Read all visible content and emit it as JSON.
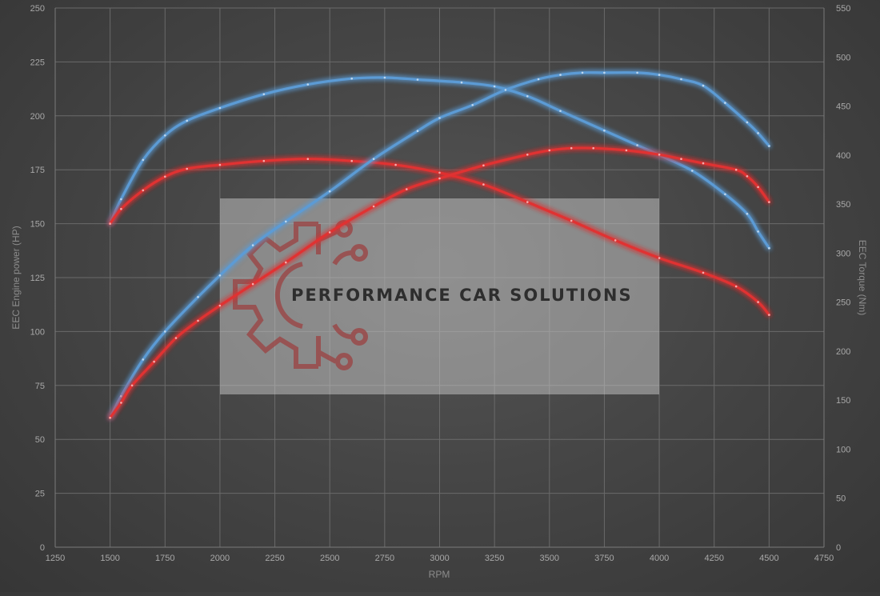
{
  "chart_data": {
    "type": "line",
    "xlabel": "RPM",
    "ylabel_left": "EEC Engine power (HP)",
    "ylabel_right": "EEC Torque (Nm)",
    "xlim": [
      1250,
      4750
    ],
    "ylim_left": [
      0,
      250
    ],
    "ylim_right": [
      0,
      550
    ],
    "x_ticks": [
      1250,
      1500,
      1750,
      2000,
      2250,
      2500,
      2750,
      3000,
      3250,
      3500,
      3750,
      4000,
      4250,
      4500,
      4750
    ],
    "y_left_ticks": [
      0,
      25,
      50,
      75,
      100,
      125,
      150,
      175,
      200,
      225,
      250
    ],
    "y_right_ticks": [
      0,
      50,
      100,
      150,
      200,
      250,
      300,
      350,
      400,
      450,
      500,
      550
    ],
    "grid": true,
    "series": [
      {
        "axis": "right",
        "color": "#5b9bd5",
        "x": [
          1500,
          1550,
          1650,
          1750,
          1850,
          2000,
          2200,
          2400,
          2600,
          2750,
          2900,
          3100,
          3250,
          3400,
          3550,
          3750,
          3900,
          4000,
          4150,
          4300,
          4400,
          4450,
          4500
        ],
        "values": [
          330,
          355,
          395,
          420,
          435,
          448,
          462,
          472,
          478,
          479,
          477,
          474,
          470,
          460,
          445,
          425,
          410,
          400,
          384,
          360,
          340,
          322,
          305
        ]
      },
      {
        "axis": "right",
        "color": "#e03030",
        "x": [
          1500,
          1550,
          1650,
          1750,
          1850,
          2000,
          2200,
          2400,
          2600,
          2800,
          3000,
          3200,
          3400,
          3600,
          3800,
          4000,
          4200,
          4350,
          4450,
          4500
        ],
        "values": [
          330,
          345,
          364,
          378,
          386,
          390,
          394,
          396,
          394,
          390,
          382,
          370,
          352,
          333,
          313,
          295,
          280,
          266,
          250,
          237
        ]
      },
      {
        "axis": "left",
        "color": "#5b9bd5",
        "x": [
          1500,
          1550,
          1650,
          1750,
          1900,
          2000,
          2150,
          2300,
          2500,
          2700,
          2900,
          3000,
          3150,
          3300,
          3450,
          3550,
          3650,
          3750,
          3900,
          4000,
          4100,
          4200,
          4300,
          4400,
          4450,
          4500
        ],
        "values": [
          60,
          70,
          87,
          100,
          116,
          126,
          140,
          151,
          165,
          180,
          193,
          199,
          205,
          212,
          217,
          219,
          220,
          220,
          220,
          219,
          217,
          214,
          206,
          197,
          192,
          186
        ]
      },
      {
        "axis": "left",
        "color": "#e03030",
        "x": [
          1500,
          1550,
          1600,
          1700,
          1800,
          1900,
          2000,
          2150,
          2300,
          2500,
          2700,
          2850,
          3000,
          3200,
          3400,
          3500,
          3600,
          3700,
          3850,
          4000,
          4100,
          4200,
          4350,
          4400,
          4450,
          4500
        ],
        "values": [
          60,
          67,
          75,
          86,
          97,
          105,
          112,
          122,
          132,
          146,
          158,
          166,
          171,
          177,
          182,
          184,
          185,
          185,
          184,
          182,
          180,
          178,
          175,
          172,
          167,
          160
        ]
      }
    ],
    "watermark_text": "PERFORMANCE CAR SOLUTIONS"
  }
}
